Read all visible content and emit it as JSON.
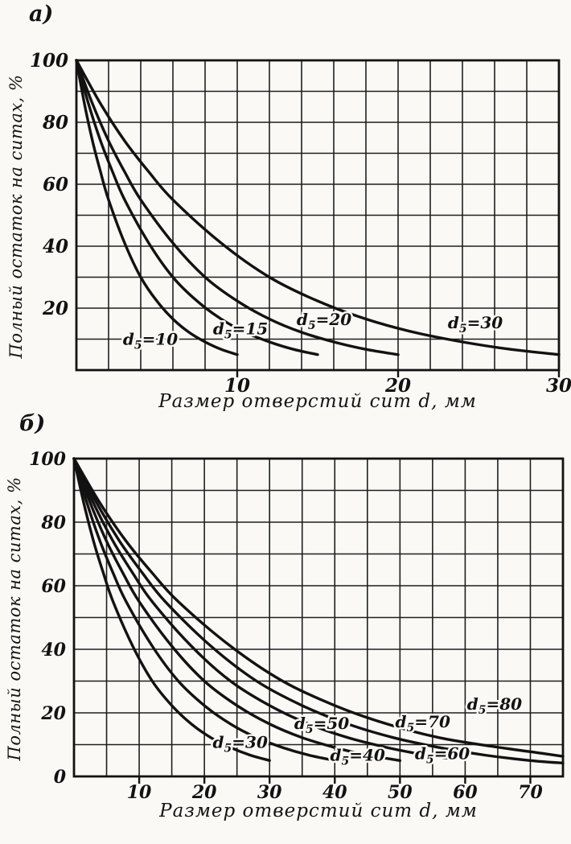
{
  "figure": {
    "bg": "#faf9f6",
    "ink": "#121212",
    "grid_color": "#1f1f1f"
  },
  "panels": [
    {
      "tag": "а)",
      "xlabel": "Размер отверстий сит d, мм",
      "ylabel": "Полный остаток на ситах, %"
    },
    {
      "tag": "б)",
      "xlabel": "Размер отверстий сит d, мм",
      "ylabel": "Полный остаток на ситах, %"
    }
  ],
  "chart_data": [
    {
      "type": "line",
      "panel": "a",
      "title": "а)",
      "xlabel": "Размер отверстий сит d, мм",
      "ylabel": "Полный остаток на ситах, %",
      "xlim": [
        0,
        30
      ],
      "ylim": [
        0,
        100
      ],
      "x_grid_step": 2,
      "y_grid_step": 10,
      "x_ticks": [
        10,
        20,
        30
      ],
      "y_ticks": [
        20,
        40,
        60,
        80,
        100
      ],
      "grid": true,
      "legend_position": "on-curve",
      "series": [
        {
          "name": "d₅=10",
          "d5": 10,
          "label_pos": [
            4.6,
            8.2
          ],
          "points": [
            [
              0,
              100
            ],
            [
              0.5,
              86
            ],
            [
              1,
              74
            ],
            [
              1.5,
              64
            ],
            [
              2,
              55
            ],
            [
              3,
              41
            ],
            [
              4,
              30
            ],
            [
              5,
              22.3
            ],
            [
              6,
              16.5
            ],
            [
              7,
              12.2
            ],
            [
              8,
              9.1
            ],
            [
              9,
              6.7
            ],
            [
              10,
              5
            ]
          ]
        },
        {
          "name": "d₅=15",
          "d5": 15,
          "label_pos": [
            10.2,
            11.5
          ],
          "points": [
            [
              0,
              100
            ],
            [
              0.75,
              86
            ],
            [
              1.5,
              74
            ],
            [
              2.25,
              64
            ],
            [
              3,
              55
            ],
            [
              4.5,
              41
            ],
            [
              6,
              30
            ],
            [
              7.5,
              22.3
            ],
            [
              9,
              16.5
            ],
            [
              10.5,
              12.2
            ],
            [
              12,
              9.1
            ],
            [
              13.5,
              6.7
            ],
            [
              15,
              5
            ]
          ]
        },
        {
          "name": "d₅=20",
          "d5": 20,
          "label_pos": [
            15.4,
            14.5
          ],
          "points": [
            [
              0,
              100
            ],
            [
              1,
              86
            ],
            [
              2,
              74
            ],
            [
              3,
              64
            ],
            [
              4,
              55
            ],
            [
              6,
              41
            ],
            [
              8,
              30
            ],
            [
              10,
              22.3
            ],
            [
              12,
              16.5
            ],
            [
              14,
              12.2
            ],
            [
              16,
              9.1
            ],
            [
              18,
              6.7
            ],
            [
              20,
              5
            ]
          ]
        },
        {
          "name": "d₅=30",
          "d5": 30,
          "label_pos": [
            24.8,
            13.5
          ],
          "points": [
            [
              0,
              100
            ],
            [
              1.5,
              86
            ],
            [
              3,
              74
            ],
            [
              4.5,
              64
            ],
            [
              6,
              55
            ],
            [
              9,
              41
            ],
            [
              12,
              30
            ],
            [
              15,
              22.3
            ],
            [
              18,
              16.5
            ],
            [
              21,
              12.2
            ],
            [
              24,
              9.1
            ],
            [
              27,
              6.7
            ],
            [
              30,
              5
            ]
          ]
        }
      ]
    },
    {
      "type": "line",
      "panel": "b",
      "title": "б)",
      "xlabel": "Размер отверстий сит d, мм",
      "ylabel": "Полный остаток на ситах, %",
      "xlim": [
        0,
        75
      ],
      "ylim": [
        0,
        100
      ],
      "x_grid_step": 5,
      "y_grid_step": 10,
      "x_ticks": [
        10,
        20,
        30,
        40,
        50,
        60,
        70
      ],
      "y_ticks": [
        0,
        20,
        40,
        60,
        80,
        100
      ],
      "grid": true,
      "legend_position": "on-curve",
      "series": [
        {
          "name": "d₅=30",
          "d5": 30,
          "label_pos": [
            25.5,
            9
          ],
          "points": [
            [
              0,
              100
            ],
            [
              1.5,
              86
            ],
            [
              3,
              74
            ],
            [
              4.5,
              64
            ],
            [
              6,
              55
            ],
            [
              9,
              41
            ],
            [
              12,
              30
            ],
            [
              15,
              22.3
            ],
            [
              18,
              16.5
            ],
            [
              21,
              12.2
            ],
            [
              24,
              9.1
            ],
            [
              27,
              6.7
            ],
            [
              30,
              5
            ]
          ]
        },
        {
          "name": "d₅=40",
          "d5": 40,
          "label_pos": [
            43.5,
            5
          ],
          "points": [
            [
              0,
              100
            ],
            [
              2,
              86
            ],
            [
              4,
              74
            ],
            [
              6,
              64
            ],
            [
              8,
              55
            ],
            [
              12,
              41
            ],
            [
              16,
              30
            ],
            [
              20,
              22.3
            ],
            [
              24,
              16.5
            ],
            [
              28,
              12.2
            ],
            [
              32,
              9.1
            ],
            [
              36,
              6.7
            ],
            [
              40,
              5
            ]
          ]
        },
        {
          "name": "d₅=50",
          "d5": 50,
          "label_pos": [
            38,
            15
          ],
          "points": [
            [
              0,
              100
            ],
            [
              2.5,
              86
            ],
            [
              5,
              74
            ],
            [
              7.5,
              64
            ],
            [
              10,
              55
            ],
            [
              15,
              41
            ],
            [
              20,
              30
            ],
            [
              25,
              22.3
            ],
            [
              30,
              16.5
            ],
            [
              35,
              12.2
            ],
            [
              40,
              9.1
            ],
            [
              45,
              6.7
            ],
            [
              50,
              5
            ]
          ]
        },
        {
          "name": "d₅=60",
          "d5": 60,
          "label_pos": [
            56.5,
            5.5
          ],
          "points": [
            [
              0,
              100
            ],
            [
              3,
              86
            ],
            [
              6,
              74
            ],
            [
              9,
              64
            ],
            [
              12,
              55
            ],
            [
              18,
              41
            ],
            [
              24,
              30
            ],
            [
              30,
              22.3
            ],
            [
              36,
              16.5
            ],
            [
              42,
              12.2
            ],
            [
              48,
              9.1
            ],
            [
              54,
              6.7
            ],
            [
              58,
              5.6
            ]
          ]
        },
        {
          "name": "d₅=70",
          "d5": 70,
          "label_pos": [
            53.5,
            15.5
          ],
          "points": [
            [
              0,
              100
            ],
            [
              3.5,
              86
            ],
            [
              7,
              74
            ],
            [
              10.5,
              64
            ],
            [
              14,
              55
            ],
            [
              21,
              41
            ],
            [
              28,
              30
            ],
            [
              35,
              22.3
            ],
            [
              42,
              16.5
            ],
            [
              49,
              12.2
            ],
            [
              56,
              9.1
            ],
            [
              63,
              6.7
            ],
            [
              70,
              5
            ],
            [
              75,
              4.2
            ]
          ]
        },
        {
          "name": "d₅=80",
          "d5": 80,
          "label_pos": [
            64.5,
            21
          ],
          "points": [
            [
              0,
              100
            ],
            [
              4,
              86
            ],
            [
              8,
              74
            ],
            [
              12,
              64
            ],
            [
              16,
              55
            ],
            [
              24,
              41
            ],
            [
              32,
              30
            ],
            [
              40,
              22.3
            ],
            [
              48,
              16.5
            ],
            [
              56,
              12.2
            ],
            [
              64,
              9.5
            ],
            [
              72,
              7.2
            ],
            [
              75,
              6.3
            ]
          ]
        }
      ]
    }
  ]
}
